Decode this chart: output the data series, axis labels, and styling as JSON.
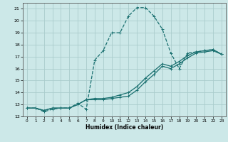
{
  "xlabel": "Humidex (Indice chaleur)",
  "bg_color": "#cce8e8",
  "grid_color": "#aacccc",
  "line_color": "#1a7070",
  "xlim": [
    -0.5,
    23.5
  ],
  "ylim": [
    12,
    21.5
  ],
  "xticks": [
    0,
    1,
    2,
    3,
    4,
    5,
    6,
    7,
    8,
    9,
    10,
    11,
    12,
    13,
    14,
    15,
    16,
    17,
    18,
    19,
    20,
    21,
    22,
    23
  ],
  "yticks": [
    12,
    13,
    14,
    15,
    16,
    17,
    18,
    19,
    20,
    21
  ],
  "curve1_x": [
    0,
    1,
    2,
    3,
    4,
    5,
    6,
    7,
    8,
    9,
    10,
    11,
    12,
    13,
    14,
    15,
    16,
    17,
    18,
    19,
    20,
    21,
    22,
    23
  ],
  "curve1_y": [
    12.7,
    12.7,
    12.4,
    12.6,
    12.7,
    12.7,
    13.1,
    12.6,
    16.7,
    17.5,
    19.0,
    19.0,
    20.4,
    21.1,
    21.1,
    20.4,
    19.3,
    17.3,
    16.0,
    17.3,
    17.4,
    17.5,
    17.6,
    17.2
  ],
  "curve2_x": [
    0,
    1,
    2,
    3,
    4,
    5,
    6,
    7,
    8,
    9,
    10,
    11,
    12,
    13,
    14,
    15,
    16,
    17,
    18,
    19,
    20,
    21,
    22,
    23
  ],
  "curve2_y": [
    12.7,
    12.7,
    12.5,
    12.7,
    12.7,
    12.7,
    13.0,
    13.4,
    13.4,
    13.4,
    13.5,
    13.6,
    13.7,
    14.2,
    14.9,
    15.5,
    16.2,
    16.0,
    16.4,
    16.9,
    17.3,
    17.4,
    17.5,
    17.2
  ],
  "curve3_x": [
    0,
    1,
    2,
    3,
    4,
    5,
    6,
    7,
    8,
    9,
    10,
    11,
    12,
    13,
    14,
    15,
    16,
    17,
    18,
    19,
    20,
    21,
    22,
    23
  ],
  "curve3_y": [
    12.7,
    12.7,
    12.5,
    12.7,
    12.7,
    12.7,
    13.0,
    13.4,
    13.5,
    13.5,
    13.6,
    13.8,
    14.0,
    14.5,
    15.2,
    15.8,
    16.4,
    16.2,
    16.6,
    17.1,
    17.4,
    17.5,
    17.6,
    17.2
  ]
}
